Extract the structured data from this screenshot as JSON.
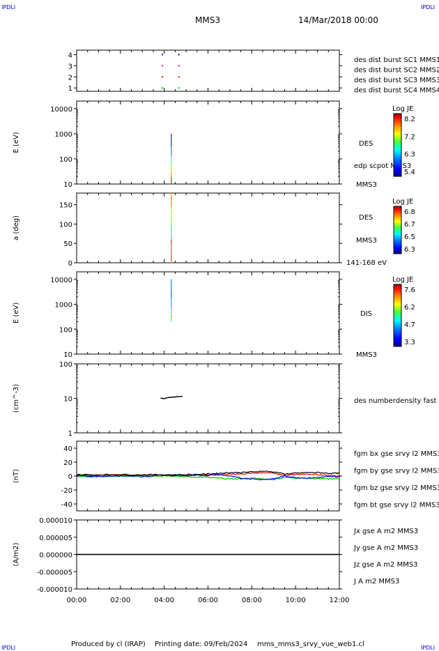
{
  "corner_labels": [
    "IPDLI",
    "IPDLI",
    "IPDLI",
    "IPDLI"
  ],
  "header": {
    "title": "MMS3",
    "date": "14/Mar/2018 00:00"
  },
  "footer": {
    "produced_by": "Produced by cl (IRAP)",
    "printing_date": "Printing date: 09/Feb/2024",
    "filename": "mms_mms3_srvy_vue_web1.cl"
  },
  "colors": {
    "red": "#e00000",
    "green": "#00c000",
    "blue": "#0000e0",
    "magenta": "#e000e0",
    "black": "#000000"
  },
  "chart_data": [
    {
      "type": "scatter",
      "panel": "burst-availability",
      "yticks": [
        "1",
        "2",
        "3",
        "4"
      ],
      "ylim": [
        0.7,
        4.4
      ],
      "series": [
        {
          "name": "des dist burst SC1 MMS1",
          "color": "#0000e0",
          "y": 4,
          "x": [
            "03:55",
            "04:40"
          ]
        },
        {
          "name": "des dist burst SC2 MMS2",
          "color": "#e000e0",
          "y": 3,
          "x": [
            "03:55",
            "04:40"
          ]
        },
        {
          "name": "des dist burst SC3 MMS3",
          "color": "#e00000",
          "y": 2,
          "x": [
            "03:55",
            "04:40"
          ]
        },
        {
          "name": "des dist burst SC4 MMS4",
          "color": "#00c000",
          "y": 1,
          "x": [
            "03:55",
            "04:40"
          ]
        }
      ]
    },
    {
      "type": "heatmap",
      "panel": "des-energy-spectrogram",
      "ylabel": "E (eV)",
      "yscale": "log",
      "ylim": [
        10,
        20000
      ],
      "yticks": [
        "10",
        "100",
        "1000",
        "10000"
      ],
      "time_range": [
        "03:50",
        "04:50"
      ],
      "energy_range": [
        10,
        1000
      ],
      "side_labels": [
        "DES",
        "edp scpot MMS3",
        "MMS3"
      ],
      "colorbar": {
        "title": "Log JE",
        "ticks": [
          "8.2",
          "7.2",
          "6.3",
          "5.4"
        ],
        "range": [
          5.4,
          8.2
        ]
      }
    },
    {
      "type": "heatmap",
      "panel": "des-pitch-angle",
      "ylabel": "a (deg)",
      "ylim": [
        0,
        180
      ],
      "yticks": [
        "0",
        "50",
        "100",
        "150"
      ],
      "time_range": [
        "03:50",
        "04:50"
      ],
      "side_labels": [
        "DES",
        "MMS3",
        "141-168 eV"
      ],
      "colorbar": {
        "title": "Log JE",
        "ticks": [
          "6.8",
          "6.7",
          "6.5",
          "6.3"
        ],
        "range": [
          6.3,
          6.8
        ]
      }
    },
    {
      "type": "heatmap",
      "panel": "dis-energy-spectrogram",
      "ylabel": "E (eV)",
      "yscale": "log",
      "ylim": [
        10,
        20000
      ],
      "yticks": [
        "10",
        "100",
        "1000",
        "10000"
      ],
      "time_range": [
        "03:50",
        "04:50"
      ],
      "energy_range": [
        200,
        10000
      ],
      "side_labels": [
        "DIS",
        "MMS3"
      ],
      "colorbar": {
        "title": "Log JE",
        "ticks": [
          "7.6",
          "6.2",
          "4.7",
          "3.3"
        ],
        "range": [
          3.3,
          7.6
        ]
      }
    },
    {
      "type": "line",
      "panel": "density",
      "ylabel": "(cm^-3)",
      "yscale": "log",
      "ylim": [
        1,
        100
      ],
      "yticks": [
        "1",
        "10",
        "100"
      ],
      "series": [
        {
          "name": "des numberdensity fast M",
          "color": "#000000",
          "x": [
            "03:50",
            "04:00",
            "04:10",
            "04:20",
            "04:30",
            "04:40",
            "04:50"
          ],
          "y": [
            10.2,
            9.8,
            10.5,
            10.8,
            11.0,
            11.2,
            11.4
          ]
        }
      ]
    },
    {
      "type": "line",
      "panel": "magnetic-field",
      "ylabel": "(nT)",
      "ylim": [
        -50,
        50
      ],
      "yticks": [
        "40",
        "20",
        "0",
        "-20",
        "-40"
      ],
      "series": [
        {
          "name": "fgm bx gse srvy l2 MMS3",
          "color": "#e00000",
          "x": [
            "00:00",
            "01:00",
            "02:00",
            "03:00",
            "04:00",
            "05:00",
            "06:00",
            "06:30",
            "07:00",
            "07:30",
            "08:00",
            "08:30",
            "09:00",
            "09:30",
            "10:00",
            "10:30",
            "11:00",
            "11:30",
            "12:00"
          ],
          "y": [
            1,
            1,
            2,
            1,
            1,
            1,
            2,
            2,
            3,
            3,
            4,
            5,
            4,
            1,
            2,
            3,
            2,
            1,
            0
          ]
        },
        {
          "name": "fgm by gse srvy l2 MMS3",
          "color": "#00c000",
          "x": [
            "00:00",
            "01:00",
            "02:00",
            "03:00",
            "04:00",
            "05:00",
            "06:00",
            "06:30",
            "07:00",
            "07:30",
            "08:00",
            "08:30",
            "09:00",
            "09:30",
            "10:00",
            "10:30",
            "11:00",
            "11:30",
            "12:00"
          ],
          "y": [
            -1,
            -1,
            0,
            -1,
            0,
            -1,
            -2,
            -3,
            -4,
            -4,
            -3,
            -4,
            -5,
            -2,
            -3,
            -3,
            -4,
            -4,
            -4
          ]
        },
        {
          "name": "fgm bz gse srvy l2 MMS3",
          "color": "#0000e0",
          "x": [
            "00:00",
            "01:00",
            "02:00",
            "03:00",
            "04:00",
            "05:00",
            "06:00",
            "06:30",
            "07:00",
            "07:30",
            "08:00",
            "08:30",
            "09:00",
            "09:30",
            "10:00",
            "10:30",
            "11:00",
            "11:30",
            "12:00"
          ],
          "y": [
            0,
            0,
            0,
            0,
            1,
            1,
            1,
            2,
            0,
            -3,
            -4,
            -5,
            -4,
            0,
            -2,
            -3,
            -2,
            -1,
            -1
          ]
        },
        {
          "name": "fgm bt gse srvy l2 MMS3",
          "color": "#000000",
          "x": [
            "00:00",
            "01:00",
            "02:00",
            "03:00",
            "04:00",
            "05:00",
            "06:00",
            "06:30",
            "07:00",
            "07:30",
            "08:00",
            "08:30",
            "09:00",
            "09:30",
            "10:00",
            "10:30",
            "11:00",
            "11:30",
            "12:00"
          ],
          "y": [
            2,
            2,
            2,
            2,
            2,
            2,
            3,
            4,
            5,
            5,
            6,
            7,
            6,
            3,
            4,
            5,
            5,
            4,
            4
          ]
        }
      ]
    },
    {
      "type": "line",
      "panel": "current-density",
      "ylabel": "(A/m2)",
      "ylim": [
        -1e-05,
        1e-05
      ],
      "yticks": [
        "0.000010",
        "0.000005",
        "0.000000",
        "-0.000005",
        "-0.000010"
      ],
      "series": [
        {
          "name": "Jx gse A m2 MMS3",
          "color": "#e00000",
          "x": [
            "00:00",
            "12:00"
          ],
          "y": [
            0,
            0
          ]
        },
        {
          "name": "Jy gse A m2 MMS3",
          "color": "#00c000",
          "x": [
            "00:00",
            "12:00"
          ],
          "y": [
            0,
            0
          ]
        },
        {
          "name": "Jz gse A m2 MMS3",
          "color": "#0000e0",
          "x": [
            "00:00",
            "12:00"
          ],
          "y": [
            0,
            0
          ]
        },
        {
          "name": "J A m2 MMS3",
          "color": "#000000",
          "x": [
            "00:00",
            "12:00"
          ],
          "y": [
            0,
            0
          ]
        }
      ]
    }
  ],
  "xaxis": {
    "ticks": [
      "00:00",
      "02:00",
      "04:00",
      "06:00",
      "08:00",
      "10:00",
      "12:00"
    ],
    "range": [
      "00:00",
      "12:00"
    ]
  }
}
